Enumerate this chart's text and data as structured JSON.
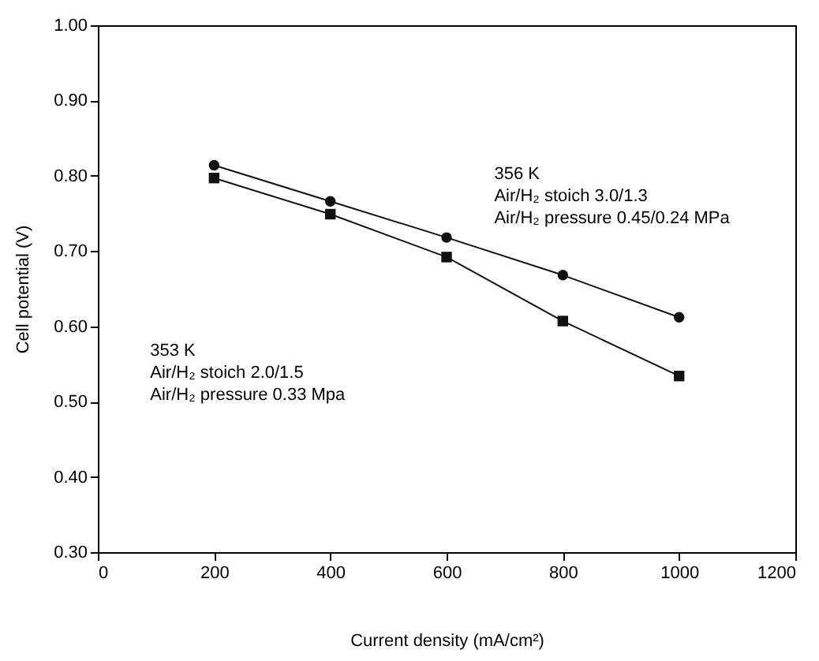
{
  "chart_data": {
    "type": "line",
    "xlabel": "Current density (mA/cm²)",
    "ylabel": "Cell potential (V)",
    "x": [
      200,
      400,
      600,
      800,
      1000
    ],
    "series": [
      {
        "color": "#111111",
        "marker": "circle",
        "values": [
          0.814,
          0.766,
          0.718,
          0.668,
          0.612
        ]
      },
      {
        "color": "#111111",
        "marker": "square",
        "values": [
          0.797,
          0.749,
          0.692,
          0.607,
          0.534
        ]
      }
    ],
    "xlim": [
      0,
      1200
    ],
    "xticks": [
      0,
      200,
      400,
      600,
      800,
      1000,
      1200
    ],
    "ylim": [
      0.3,
      1.0
    ],
    "yticks": [
      {
        "value": 0.3,
        "label": "0.30"
      },
      {
        "value": 0.4,
        "label": "0.40"
      },
      {
        "value": 0.5,
        "label": "0.50"
      },
      {
        "value": 0.6,
        "label": "0.60"
      },
      {
        "value": 0.7,
        "label": "0.70"
      },
      {
        "value": 0.8,
        "label": "0.80"
      },
      {
        "value": 0.9,
        "label": "0.90"
      },
      {
        "value": 1.0,
        "label": "1.00"
      }
    ],
    "grid": false,
    "line_style": "solid",
    "annotations": [
      "356 K",
      "Air/H₂ stoich 3.0/1.3",
      "Air/H₂ pressure 0.45/0.24 MPa",
      "353 K",
      "Air/H₂ stoich 2.0/1.5",
      "Air/H₂ pressure 0.33 Mpa"
    ]
  }
}
